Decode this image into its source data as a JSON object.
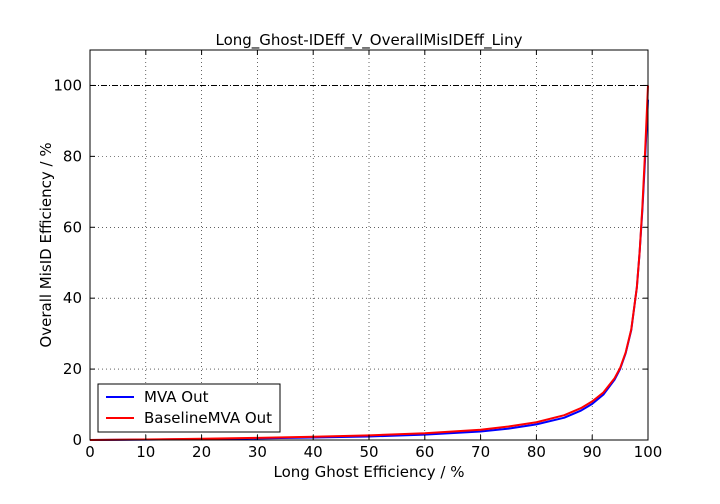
{
  "chart_data": {
    "type": "line",
    "title": "Long_Ghost-IDEff_V_OverallMisIDEff_Liny",
    "xlabel": "Long Ghost Efficiency / %",
    "ylabel": "Overall MisID Efficiency / %",
    "xlim": [
      0,
      100
    ],
    "ylim": [
      0,
      110
    ],
    "xticks": [
      0,
      10,
      20,
      30,
      40,
      50,
      60,
      70,
      80,
      90,
      100
    ],
    "yticks": [
      0,
      20,
      40,
      60,
      80,
      100
    ],
    "grid": true,
    "reference_line_y": 100,
    "legend_position": "lower-left",
    "series": [
      {
        "name": "MVA Out",
        "color": "#0000ff",
        "x": [
          0,
          10,
          20,
          30,
          40,
          50,
          60,
          70,
          75,
          80,
          85,
          88,
          90,
          92,
          94,
          95,
          96,
          97,
          98,
          98.5,
          99,
          99.5,
          100
        ],
        "y": [
          0,
          0.1,
          0.25,
          0.45,
          0.7,
          1.0,
          1.5,
          2.4,
          3.2,
          4.4,
          6.3,
          8.3,
          10.2,
          12.8,
          17.0,
          20.0,
          24.5,
          31.0,
          43.0,
          53.0,
          65.0,
          80.0,
          96.0
        ]
      },
      {
        "name": "BaselineMVA Out",
        "color": "#ff0000",
        "x": [
          0,
          10,
          20,
          30,
          40,
          50,
          60,
          70,
          75,
          80,
          85,
          88,
          90,
          92,
          94,
          95,
          96,
          97,
          98,
          98.5,
          99,
          99.5,
          100
        ],
        "y": [
          0,
          0.15,
          0.35,
          0.6,
          0.9,
          1.3,
          1.9,
          2.9,
          3.8,
          5.0,
          7.0,
          9.0,
          10.9,
          13.4,
          17.4,
          20.3,
          24.7,
          31.2,
          43.0,
          53.0,
          66.0,
          82.0,
          100.0
        ]
      }
    ]
  }
}
